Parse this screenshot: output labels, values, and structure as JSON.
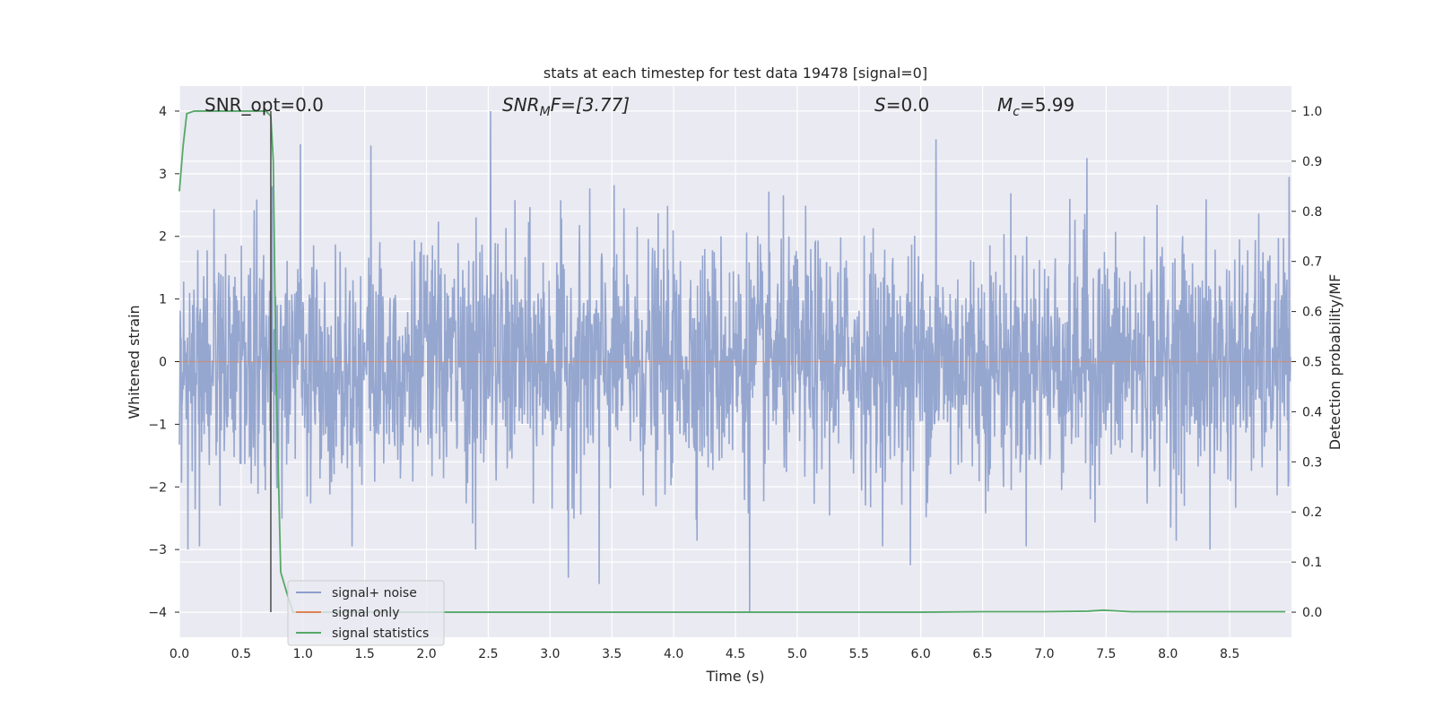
{
  "chart_data": {
    "type": "line",
    "title": "stats at each timestep for test data 19478 [signal=0]",
    "xlabel": "Time (s)",
    "ylabel": "Whitened strain",
    "y2label": "Detection probability/MF",
    "xlim": [
      0.0,
      9.0
    ],
    "ylim": [
      -4.4,
      4.4
    ],
    "y2lim": [
      -0.05,
      1.05
    ],
    "xticks": [
      0.0,
      0.5,
      1.0,
      1.5,
      2.0,
      2.5,
      3.0,
      3.5,
      4.0,
      4.5,
      5.0,
      5.5,
      6.0,
      6.5,
      7.0,
      7.5,
      8.0,
      8.5
    ],
    "xtick_labels": [
      "0.0",
      "0.5",
      "1.0",
      "1.5",
      "2.0",
      "2.5",
      "3.0",
      "3.5",
      "4.0",
      "4.5",
      "5.0",
      "5.5",
      "6.0",
      "6.5",
      "7.0",
      "7.5",
      "8.0",
      "8.5"
    ],
    "yticks": [
      4,
      3,
      2,
      1,
      0,
      -1,
      -2,
      -3,
      -4
    ],
    "ytick_labels": [
      "4",
      "3",
      "2",
      "1",
      "0",
      "−1",
      "−2",
      "−3",
      "−4"
    ],
    "y2ticks": [
      1.0,
      0.9,
      0.8,
      0.7,
      0.6,
      0.5,
      0.4,
      0.3,
      0.2,
      0.1,
      0.0
    ],
    "y2tick_labels": [
      "1.0",
      "0.9",
      "0.8",
      "0.7",
      "0.6",
      "0.5",
      "0.4",
      "0.3",
      "0.2",
      "0.1",
      "0.0"
    ],
    "grid": true,
    "legend_position": "lower-left",
    "annotations": {
      "snr_opt": "SNR_opt=0.0",
      "snr_mf_main": "SNR",
      "snr_mf_sub": "M",
      "snr_mf_rest": "F=[3.77]",
      "s_var": "S",
      "s_rest": "=0.0",
      "mc_var": "M",
      "mc_sub": "c",
      "mc_rest": "=5.99"
    },
    "series": [
      {
        "name": "signal+ noise",
        "color": "#8c9fcb",
        "description": "whitened strain noise, std about 1, peaks reaching about 4.0 near t=2.52, 3.55 near t=6.13, 3.47 near t=0.98, -4.0 near t=4.62, -3.45 near t=3.15",
        "peaks": [
          {
            "x": 0.07,
            "y": -3.0
          },
          {
            "x": 0.75,
            "y": 2.8
          },
          {
            "x": 0.98,
            "y": 3.47
          },
          {
            "x": 1.55,
            "y": 3.45
          },
          {
            "x": 2.4,
            "y": -3.0
          },
          {
            "x": 2.52,
            "y": 4.0
          },
          {
            "x": 3.15,
            "y": -3.45
          },
          {
            "x": 3.4,
            "y": -3.55
          },
          {
            "x": 4.62,
            "y": -4.0
          },
          {
            "x": 5.92,
            "y": -3.25
          },
          {
            "x": 6.13,
            "y": 3.55
          },
          {
            "x": 7.35,
            "y": 3.25
          },
          {
            "x": 8.35,
            "y": -3.0
          }
        ]
      },
      {
        "name": "signal only",
        "color": "#dd8452",
        "x": [
          0.0,
          9.0
        ],
        "y": [
          0.0,
          0.0
        ]
      },
      {
        "name": "signal statistics",
        "color": "#55a868",
        "x": [
          0.0,
          0.03,
          0.06,
          0.12,
          0.2,
          0.35,
          0.5,
          0.6,
          0.65,
          0.7,
          0.74,
          0.76,
          0.78,
          0.82,
          0.88,
          0.92,
          1.0,
          2.0,
          3.0,
          4.0,
          5.0,
          6.0,
          6.5,
          7.0,
          7.35,
          7.48,
          7.55,
          7.7,
          8.0,
          8.5,
          8.95
        ],
        "y": [
          0.84,
          0.93,
          0.995,
          1.0,
          1.0,
          1.0,
          1.0,
          1.0,
          1.0,
          1.0,
          0.99,
          0.9,
          0.5,
          0.08,
          0.03,
          0.0,
          0.0,
          0.0,
          0.0,
          0.0,
          0.0,
          0.0,
          0.001,
          0.001,
          0.002,
          0.004,
          0.003,
          0.001,
          0.001,
          0.001,
          0.001
        ]
      }
    ],
    "vertical_marker": {
      "x": 0.74,
      "y_from": -4.0,
      "y_to": 4.0,
      "color": "#404040"
    }
  }
}
